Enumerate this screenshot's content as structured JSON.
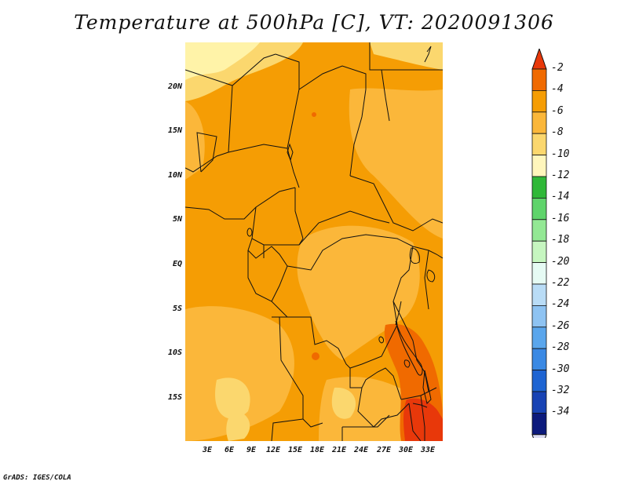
{
  "title": "Temperature at 500hPa [C], VT: 2020091306",
  "credit": "GrADS: IGES/COLA",
  "lat_labels": [
    "20N",
    "15N",
    "10N",
    "5N",
    "EQ",
    "5S",
    "10S",
    "15S"
  ],
  "lon_labels": [
    "3E",
    "6E",
    "9E",
    "12E",
    "15E",
    "18E",
    "21E",
    "24E",
    "27E",
    "30E",
    "33E"
  ],
  "colorbar": {
    "labels": [
      "-2",
      "-4",
      "-6",
      "-8",
      "-10",
      "-12",
      "-14",
      "-16",
      "-18",
      "-20",
      "-22",
      "-24",
      "-26",
      "-28",
      "-30",
      "-32",
      "-34"
    ],
    "colors": [
      "#e8380a",
      "#f06a00",
      "#f59d04",
      "#fbb73a",
      "#fbd76e",
      "#fff6bc",
      "#2fb838",
      "#5fd46b",
      "#93e894",
      "#c6f6c0",
      "#e6fbf4",
      "#b9dcf6",
      "#8ec3f2",
      "#5aa6ec",
      "#3a89e4",
      "#1e64d2",
      "#1843b4",
      "#0c1a7c"
    ],
    "end_color": "#dcdcf2"
  },
  "map": {
    "dominant_range": "-6 to -8",
    "colors": {
      "warm": "#f59d04",
      "mid": "#fbb73a",
      "cool": "#fbd76e",
      "pale": "#fff3a8",
      "hot": "#f06a00",
      "hottest": "#e8380a"
    }
  }
}
